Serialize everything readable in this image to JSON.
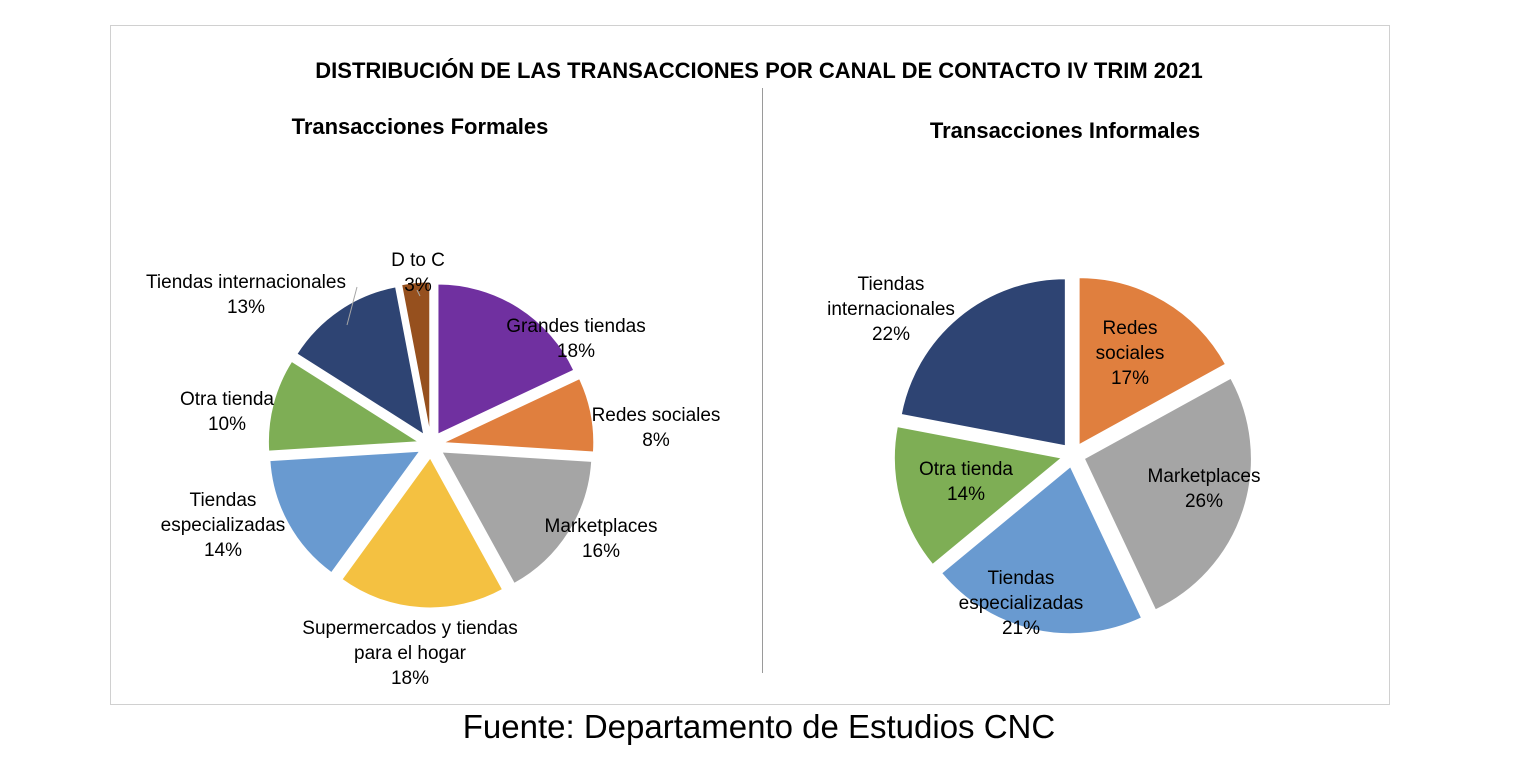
{
  "main_title": "DISTRIBUCIÓN DE LAS TRANSACCIONES  POR CANAL DE CONTACTO IV TRIM 2021",
  "source": "Fuente: Departamento de Estudios CNC",
  "chart_data": [
    {
      "type": "pie",
      "title": "Transacciones Formales",
      "slices": [
        {
          "label": "Grandes tiendas",
          "value": 18,
          "value_label": "18%",
          "color": "#7030A0"
        },
        {
          "label": "Redes sociales",
          "value": 8,
          "value_label": "8%",
          "color": "#E07F3E"
        },
        {
          "label": "Marketplaces",
          "value": 16,
          "value_label": "16%",
          "color": "#A5A5A5"
        },
        {
          "label": "Supermercados y tiendas para el hogar",
          "value": 18,
          "value_label": "18%",
          "color": "#F4C141"
        },
        {
          "label": "Tiendas especializadas",
          "value": 14,
          "value_label": "14%",
          "color": "#699AD0"
        },
        {
          "label": "Otra tienda",
          "value": 10,
          "value_label": "10%",
          "color": "#7EAE55"
        },
        {
          "label": "Tiendas internacionales",
          "value": 13,
          "value_label": "13%",
          "color": "#2E4473"
        },
        {
          "label": "D to C",
          "value": 3,
          "value_label": "3%",
          "color": "#96501E"
        }
      ]
    },
    {
      "type": "pie",
      "title": "Transacciones Informales",
      "slices": [
        {
          "label": "Redes sociales",
          "value": 17,
          "value_label": "17%",
          "color": "#E07F3E"
        },
        {
          "label": "Marketplaces",
          "value": 26,
          "value_label": "26%",
          "color": "#A5A5A5"
        },
        {
          "label": "Tiendas especializadas",
          "value": 21,
          "value_label": "21%",
          "color": "#699AD0"
        },
        {
          "label": "Otra tienda",
          "value": 14,
          "value_label": "14%",
          "color": "#7EAE55"
        },
        {
          "label": "Tiendas internacionales",
          "value": 22,
          "value_label": "22%",
          "color": "#2E4473"
        }
      ]
    }
  ]
}
